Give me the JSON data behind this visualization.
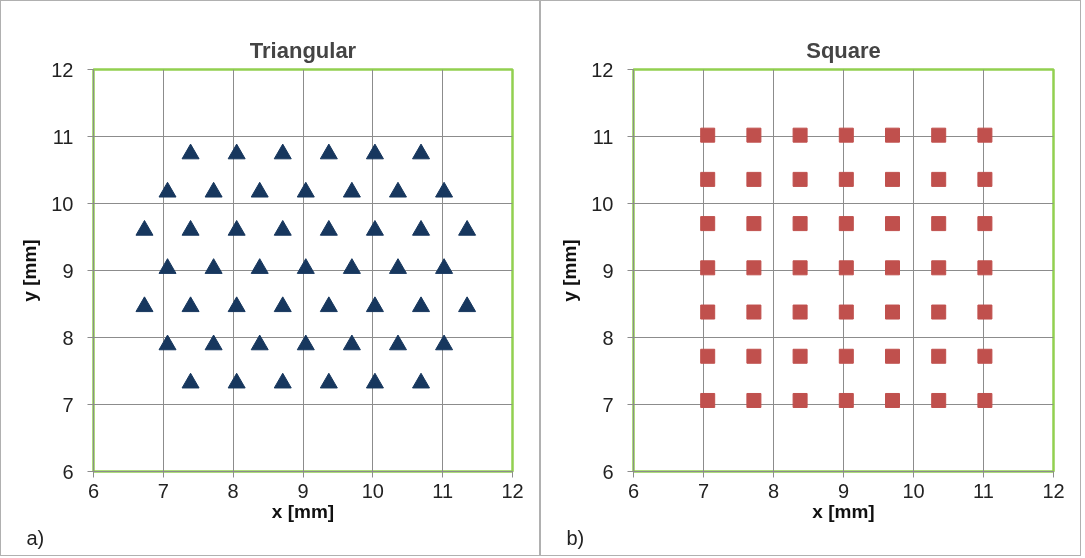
{
  "chart_data": [
    {
      "type": "scatter",
      "title": "Triangular",
      "xlabel": "x [mm]",
      "ylabel": "y [mm]",
      "annotations": [
        "a)"
      ],
      "marker": "triangle",
      "grid": true,
      "xlim": [
        6,
        12
      ],
      "ylim": [
        6,
        12
      ],
      "xticks": [
        6,
        7,
        8,
        9,
        10,
        11,
        12
      ],
      "yticks": [
        6,
        7,
        8,
        9,
        10,
        11,
        12
      ],
      "series": [
        {
          "color": "#17375e",
          "x": [
            7.39,
            8.05,
            8.71,
            9.37,
            10.03,
            10.69,
            7.06,
            7.72,
            8.38,
            9.04,
            9.7,
            10.36,
            11.02,
            6.73,
            7.39,
            8.05,
            8.71,
            9.37,
            10.03,
            10.69,
            11.35,
            7.06,
            7.72,
            8.38,
            9.04,
            9.7,
            10.36,
            11.02,
            6.73,
            7.39,
            8.05,
            8.71,
            9.37,
            10.03,
            10.69,
            11.35,
            7.06,
            7.72,
            8.38,
            9.04,
            9.7,
            10.36,
            11.02,
            7.39,
            8.05,
            8.71,
            9.37,
            10.03,
            10.69
          ],
          "values": [
            10.74,
            10.74,
            10.74,
            10.74,
            10.74,
            10.74,
            10.17,
            10.17,
            10.17,
            10.17,
            10.17,
            10.17,
            10.17,
            9.6,
            9.6,
            9.6,
            9.6,
            9.6,
            9.6,
            9.6,
            9.6,
            9.03,
            9.03,
            9.03,
            9.03,
            9.03,
            9.03,
            9.03,
            8.46,
            8.46,
            8.46,
            8.46,
            8.46,
            8.46,
            8.46,
            8.46,
            7.89,
            7.89,
            7.89,
            7.89,
            7.89,
            7.89,
            7.89,
            7.32,
            7.32,
            7.32,
            7.32,
            7.32,
            7.32
          ]
        }
      ]
    },
    {
      "type": "scatter",
      "title": "Square",
      "xlabel": "x [mm]",
      "ylabel": "y [mm]",
      "annotations": [
        "b)"
      ],
      "marker": "square",
      "grid": true,
      "xlim": [
        6,
        12
      ],
      "ylim": [
        6,
        12
      ],
      "xticks": [
        6,
        7,
        8,
        9,
        10,
        11,
        12
      ],
      "yticks": [
        6,
        7,
        8,
        9,
        10,
        11,
        12
      ],
      "series": [
        {
          "color": "#c0504d",
          "x": [
            7.06,
            7.72,
            8.38,
            9.04,
            9.7,
            10.36,
            11.02,
            7.06,
            7.72,
            8.38,
            9.04,
            9.7,
            10.36,
            11.02,
            7.06,
            7.72,
            8.38,
            9.04,
            9.7,
            10.36,
            11.02,
            7.06,
            7.72,
            8.38,
            9.04,
            9.7,
            10.36,
            11.02,
            7.06,
            7.72,
            8.38,
            9.04,
            9.7,
            10.36,
            11.02,
            7.06,
            7.72,
            8.38,
            9.04,
            9.7,
            10.36,
            11.02,
            7.06,
            7.72,
            8.38,
            9.04,
            9.7,
            10.36,
            11.02
          ],
          "values": [
            11.02,
            11.02,
            11.02,
            11.02,
            11.02,
            11.02,
            11.02,
            10.36,
            10.36,
            10.36,
            10.36,
            10.36,
            10.36,
            10.36,
            9.7,
            9.7,
            9.7,
            9.7,
            9.7,
            9.7,
            9.7,
            9.04,
            9.04,
            9.04,
            9.04,
            9.04,
            9.04,
            9.04,
            8.38,
            8.38,
            8.38,
            8.38,
            8.38,
            8.38,
            8.38,
            7.72,
            7.72,
            7.72,
            7.72,
            7.72,
            7.72,
            7.72,
            7.06,
            7.06,
            7.06,
            7.06,
            7.06,
            7.06,
            7.06
          ]
        }
      ]
    }
  ]
}
